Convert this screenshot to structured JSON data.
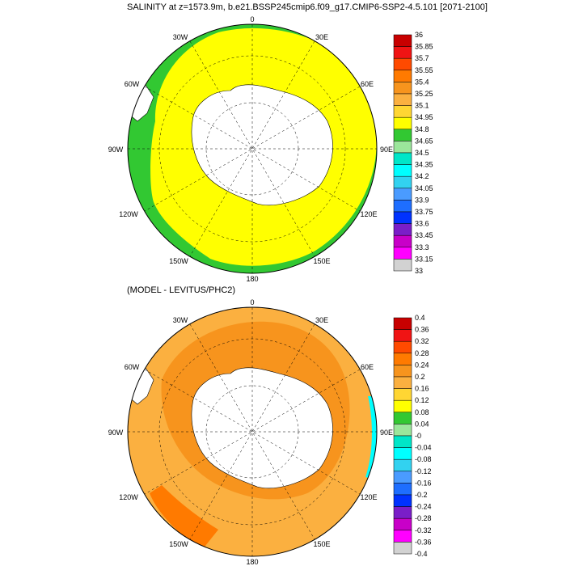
{
  "panel_top": {
    "title": "SALINITY at z=1573.9m, b.e21.BSSP245cmip6.f09_g17.CMIP6-SSP2-4.5.101 [2071-2100]",
    "lon_labels": [
      "0",
      "30E",
      "60E",
      "90E",
      "120E",
      "150E",
      "180",
      "150W",
      "120W",
      "90W",
      "60W",
      "30W"
    ],
    "colorbar": {
      "labels": [
        "36",
        "35.85",
        "35.7",
        "35.55",
        "35.4",
        "35.25",
        "35.1",
        "34.95",
        "34.8",
        "34.65",
        "34.5",
        "34.35",
        "34.2",
        "34.05",
        "33.9",
        "33.75",
        "33.6",
        "33.45",
        "33.3",
        "33.15",
        "33"
      ],
      "colors": [
        "#c80000",
        "#f01414",
        "#ff4a00",
        "#ff7a00",
        "#f7941d",
        "#fbb040",
        "#ffd633",
        "#ffff00",
        "#32c832",
        "#9be69b",
        "#00e6c8",
        "#00ffff",
        "#32d2f0",
        "#4a9bff",
        "#1e6eff",
        "#0032ff",
        "#7a1ec8",
        "#c800c8",
        "#ff00ff",
        "#d2d2d2"
      ]
    }
  },
  "panel_bottom": {
    "title": "(MODEL - LEVITUS/PHC2)",
    "lon_labels": [
      "0",
      "30E",
      "60E",
      "90E",
      "120E",
      "150E",
      "180",
      "150W",
      "120W",
      "90W",
      "60W",
      "30W"
    ],
    "colorbar": {
      "labels": [
        "0.4",
        "0.36",
        "0.32",
        "0.28",
        "0.24",
        "0.2",
        "0.16",
        "0.12",
        "0.08",
        "0.04",
        "-0",
        "-0.04",
        "-0.08",
        "-0.12",
        "-0.16",
        "-0.2",
        "-0.24",
        "-0.28",
        "-0.32",
        "-0.36",
        "-0.4"
      ],
      "colors": [
        "#c80000",
        "#f01414",
        "#ff4a00",
        "#ff7a00",
        "#f7941d",
        "#fbb040",
        "#ffd633",
        "#ffff00",
        "#32c832",
        "#9be69b",
        "#00e6c8",
        "#00ffff",
        "#32d2f0",
        "#4a9bff",
        "#1e6eff",
        "#0032ff",
        "#7a1ec8",
        "#c800c8",
        "#ff00ff",
        "#d2d2d2"
      ]
    }
  }
}
